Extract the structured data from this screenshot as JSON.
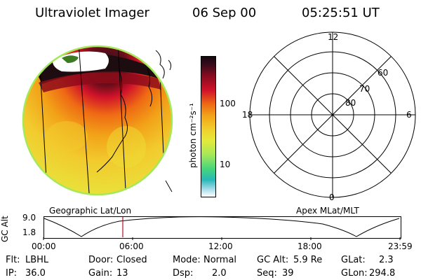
{
  "header": {
    "instrument": "Ultraviolet Imager",
    "date": "06 Sep 00",
    "time": "05:25:51 UT"
  },
  "colorbar": {
    "unit_label": "photon cm⁻²s⁻¹",
    "ticks": [
      "100",
      "10"
    ]
  },
  "polar_plot": {
    "mlt_labels": {
      "top": "12",
      "left": "18",
      "right": "6",
      "bottom": "0"
    },
    "lat_labels": [
      "60",
      "70",
      "80"
    ]
  },
  "panel_titles": {
    "left": "Geographic Lat/Lon",
    "right": "Apex MLat/MLT"
  },
  "altitude_plot": {
    "axis_label": "GC Alt",
    "y_ticks": [
      "9.0",
      "1.8"
    ],
    "x_ticks": [
      "00:00",
      "06:00",
      "12:00",
      "18:00",
      "23:59"
    ],
    "current_marker_time": "05:25:51"
  },
  "metadata": {
    "flt_label": "Flt:",
    "flt_value": "LBHL",
    "door_label": "Door:",
    "door_value": "Closed",
    "mode_label": "Mode:",
    "mode_value": "Normal",
    "gcalt_label": "GC Alt:",
    "gcalt_value": "5.9 Re",
    "glat_label": "GLat:",
    "glat_value": "2.3",
    "ip_label": "IP:",
    "ip_value": "36.0",
    "gain_label": "Gain:",
    "gain_value": "13",
    "dsp_label": "Dsp:",
    "dsp_value": "2.0",
    "seq_label": "Seq:",
    "seq_value": "39",
    "glon_label": "GLon:",
    "glon_value": "294.8"
  },
  "colors": {
    "auroral_oval": "#1a0d12",
    "high": "#c8102e",
    "mid": "#ee8a12",
    "low": "#f2d330",
    "rim": "#a6e85a",
    "marker": "#b0102a"
  }
}
